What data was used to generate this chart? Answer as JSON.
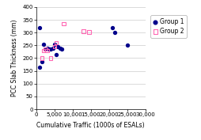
{
  "group1_x": [
    1000,
    1500,
    2000,
    2500,
    3000,
    3500,
    4000,
    4500,
    5000,
    5500,
    6000,
    6500,
    7000,
    21000,
    21500,
    25000,
    800
  ],
  "group1_y": [
    165,
    185,
    255,
    235,
    240,
    235,
    235,
    240,
    255,
    215,
    245,
    240,
    235,
    320,
    300,
    252,
    320
  ],
  "group2_x": [
    1500,
    2000,
    2500,
    3000,
    4000,
    5000,
    5500,
    7500,
    13000,
    14500
  ],
  "group2_y": [
    200,
    230,
    235,
    230,
    200,
    245,
    260,
    335,
    305,
    302
  ],
  "xlabel": "Cumulative Traffic (1000s of ESALs)",
  "ylabel": "PCC Slab Thickness (mm)",
  "xlim": [
    0,
    30000
  ],
  "ylim": [
    0,
    400
  ],
  "xticks": [
    0,
    5000,
    10000,
    15000,
    20000,
    25000,
    30000
  ],
  "yticks": [
    0,
    50,
    100,
    150,
    200,
    250,
    300,
    350,
    400
  ],
  "group1_color": "#00008B",
  "group2_color": "#FF69B4",
  "legend_group1": "Group 1",
  "legend_group2": "Group 2",
  "background_color": "#ffffff",
  "grid_color": "#cccccc"
}
